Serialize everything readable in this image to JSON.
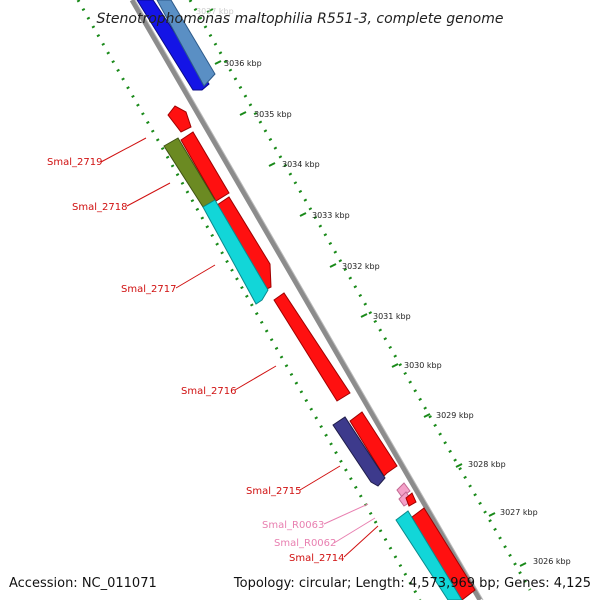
{
  "title": "Stenotrophomonas maltophilia R551-3, complete genome",
  "accession": "Accession: NC_011071",
  "topology": "Topology: circular; Length: 4,573,969 bp; Genes: 4,125",
  "colors": {
    "backbone": "#8c8c8c",
    "scale_dots": "#1a8a1a",
    "cds_red": "#ff1010",
    "gene_olive": "#6b8a22",
    "gene_cyan": "#12d6d8",
    "gene_blue": "#1414e6",
    "gene_steel": "#5a8fc4",
    "gene_purple": "#3d3a8c",
    "rna_pink": "#f4a0c8",
    "label_red": "#d01010",
    "label_pink": "#e87fb0"
  },
  "scale_labels": [
    "3037 kbp",
    "3036 kbp",
    "3035 kbp",
    "3034 kbp",
    "3033 kbp",
    "3032 kbp",
    "3031 kbp",
    "3030 kbp",
    "3029 kbp",
    "3028 kbp",
    "3027 kbp",
    "3026 kbp"
  ],
  "genes": [
    {
      "id": "Smal_2719",
      "color": "label_red"
    },
    {
      "id": "Smal_2718",
      "color": "label_red"
    },
    {
      "id": "Smal_2717",
      "color": "label_red"
    },
    {
      "id": "Smal_2716",
      "color": "label_red"
    },
    {
      "id": "Smal_2715",
      "color": "label_red"
    },
    {
      "id": "Smal_R0063",
      "color": "label_pink"
    },
    {
      "id": "Smal_R0062",
      "color": "label_pink"
    },
    {
      "id": "Smal_2714",
      "color": "label_red"
    }
  ]
}
